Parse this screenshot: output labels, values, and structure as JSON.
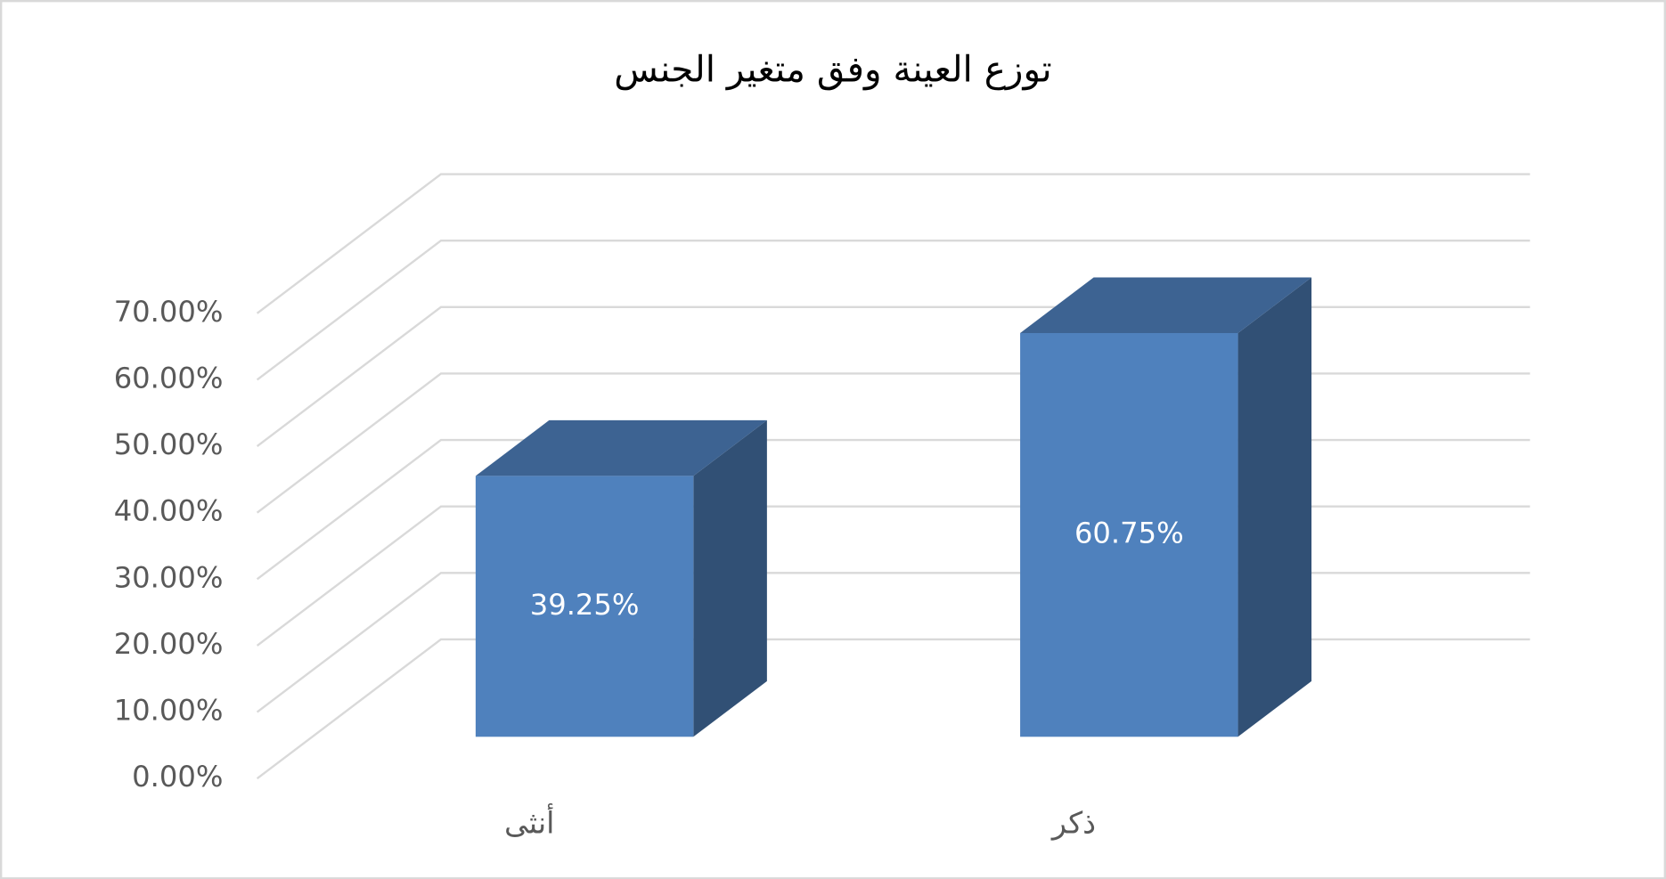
{
  "chart_data": {
    "type": "bar3d",
    "title": "توزع العينة وفق متغير الجنس",
    "categories": [
      "أنثى",
      "ذكر"
    ],
    "values": [
      39.25,
      60.75
    ],
    "value_labels": [
      "39.25%",
      "60.75%"
    ],
    "color": "#4f81bd",
    "ylim": [
      0,
      70
    ],
    "yticks": [
      {
        "value": 0,
        "label": "0.00%"
      },
      {
        "value": 10,
        "label": "10.00%"
      },
      {
        "value": 20,
        "label": "20.00%"
      },
      {
        "value": 30,
        "label": "30.00%"
      },
      {
        "value": 40,
        "label": "40.00%"
      },
      {
        "value": 50,
        "label": "50.00%"
      },
      {
        "value": 60,
        "label": "60.00%"
      },
      {
        "value": 70,
        "label": "70.00%"
      }
    ],
    "grid": true
  }
}
